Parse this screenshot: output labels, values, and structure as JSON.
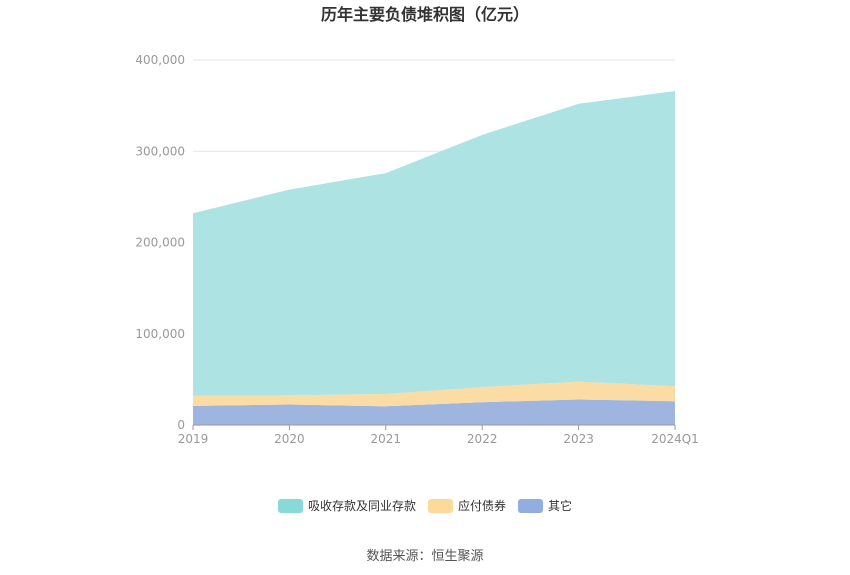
{
  "chart_data": {
    "type": "area",
    "stacked": true,
    "title": "历年主要负债堆积图（亿元）",
    "categories": [
      "2019",
      "2020",
      "2021",
      "2022",
      "2023",
      "2024Q1"
    ],
    "series": [
      {
        "name": "其它",
        "color": "#9db5df",
        "values": [
          21000,
          22500,
          20500,
          25000,
          28000,
          26000
        ]
      },
      {
        "name": "应付债券",
        "color": "#fbdca4",
        "values": [
          11000,
          10000,
          13500,
          16500,
          19500,
          16500
        ]
      },
      {
        "name": "吸收存款及同业存款",
        "color": "#aee3e4",
        "values": [
          200000,
          225500,
          242000,
          276500,
          304500,
          323500
        ]
      }
    ],
    "legend_order": [
      "吸收存款及同业存款",
      "应付债券",
      "其它"
    ],
    "legend_swatch_colors": [
      "#88d9d8",
      "#fdd99c",
      "#91aedf"
    ],
    "y_ticks": [
      "0",
      "100,000",
      "200,000",
      "300,000",
      "400,000"
    ],
    "ylim": [
      0,
      400000
    ],
    "grid": true,
    "legend_position": "bottom-center"
  },
  "footer": {
    "source": "数据来源：恒生聚源"
  }
}
